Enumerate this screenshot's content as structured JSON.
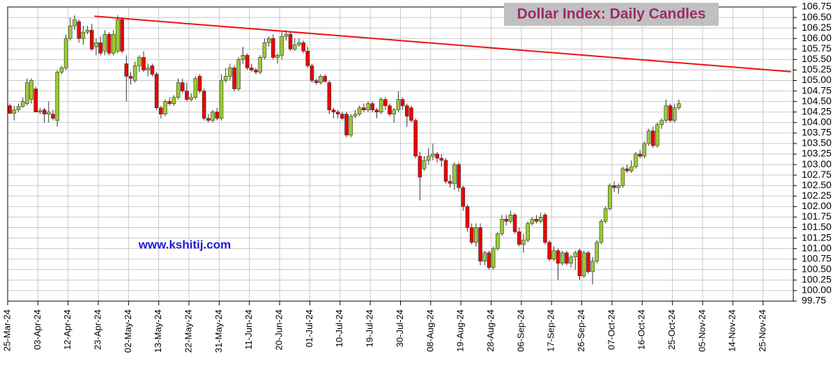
{
  "chart_data": {
    "type": "candlestick",
    "title": "Dollar Index:  Daily Candles",
    "watermark": "www.kshitij.com",
    "categories": [
      "25-Mar-24",
      null,
      null,
      null,
      null,
      null,
      null,
      "03-Apr-24",
      null,
      null,
      null,
      null,
      null,
      null,
      "12-Apr-24",
      null,
      null,
      null,
      null,
      null,
      null,
      "23-Apr-24",
      null,
      null,
      null,
      null,
      null,
      null,
      "02-May-24",
      null,
      null,
      null,
      null,
      null,
      null,
      "13-May-24",
      null,
      null,
      null,
      null,
      null,
      null,
      "22-May-24",
      null,
      null,
      null,
      null,
      null,
      null,
      "31-May-24",
      null,
      null,
      null,
      null,
      null,
      null,
      "11-Jun-24",
      null,
      null,
      null,
      null,
      null,
      null,
      "20-Jun-24",
      null,
      null,
      null,
      null,
      null,
      null,
      "01-Jul-24",
      null,
      null,
      null,
      null,
      null,
      null,
      "10-Jul-24",
      null,
      null,
      null,
      null,
      null,
      null,
      "19-Jul-24",
      null,
      null,
      null,
      null,
      null,
      null,
      "30-Jul-24",
      null,
      null,
      null,
      null,
      null,
      null,
      "08-Aug-24",
      null,
      null,
      null,
      null,
      null,
      null,
      "19-Aug-24",
      null,
      null,
      null,
      null,
      null,
      null,
      "28-Aug-24",
      null,
      null,
      null,
      null,
      null,
      null,
      "06-Sep-24",
      null,
      null,
      null,
      null,
      null,
      null,
      "17-Sep-24",
      null,
      null,
      null,
      null,
      null,
      null,
      "26-Sep-24",
      null,
      null,
      null,
      null,
      null,
      null,
      "07-Oct-24",
      null,
      null,
      null,
      null,
      null,
      null,
      "16-Oct-24",
      null,
      null,
      null,
      null,
      null,
      null,
      "25-Oct-24",
      null,
      null,
      null,
      null,
      null,
      null,
      "05-Nov-24",
      null,
      null,
      null,
      null,
      null,
      null,
      "14-Nov-24",
      null,
      null,
      null,
      null,
      null,
      null,
      "25-Nov-24",
      null,
      null,
      null,
      null,
      null,
      null
    ],
    "open": [
      104.4,
      104.22,
      104.3,
      104.38,
      104.45,
      104.55,
      104.8,
      104.25,
      104.3,
      104.2,
      104.2,
      104.05,
      105.2,
      105.3,
      106.0,
      106.3,
      106.4,
      106.0,
      106.15,
      106.2,
      105.8,
      105.9,
      105.7,
      106.1,
      105.65,
      105.7,
      106.45,
      105.4,
      105.1,
      105.0,
      105.35,
      105.55,
      105.25,
      105.35,
      105.15,
      104.35,
      104.2,
      104.5,
      104.45,
      104.6,
      104.95,
      104.75,
      104.55,
      104.6,
      105.1,
      104.75,
      104.1,
      104.05,
      104.25,
      104.1,
      105.0,
      105.1,
      105.3,
      104.8,
      105.5,
      105.6,
      105.3,
      105.25,
      105.2,
      105.55,
      105.9,
      106.0,
      105.55,
      105.6,
      106.05,
      106.1,
      105.75,
      105.85,
      105.9,
      105.7,
      105.35,
      105.0,
      104.95,
      105.1,
      104.95,
      104.3,
      104.25,
      104.2,
      104.2,
      103.7,
      104.15,
      104.2,
      104.35,
      104.3,
      104.45,
      104.3,
      104.25,
      104.55,
      104.4,
      104.2,
      104.3,
      104.55,
      104.4,
      104.35,
      104.05,
      103.2,
      102.9,
      103.1,
      103.2,
      103.25,
      103.15,
      103.1,
      102.6,
      102.55,
      103.0,
      102.45,
      102.0,
      101.5,
      101.15,
      101.5,
      100.7,
      100.9,
      100.55,
      101.0,
      101.35,
      101.7,
      101.65,
      101.8,
      101.4,
      101.1,
      101.2,
      101.6,
      101.7,
      101.65,
      101.8,
      101.15,
      100.75,
      100.95,
      100.65,
      100.9,
      100.65,
      100.8,
      100.95,
      100.35,
      100.9,
      100.45,
      100.7,
      101.15,
      101.65,
      101.95,
      102.5,
      102.45,
      102.5,
      102.9,
      102.85,
      102.95,
      103.25,
      103.2,
      103.5,
      103.8,
      103.45,
      103.95,
      104.05,
      104.4,
      104.05,
      104.35,
      null,
      null,
      null,
      null,
      null,
      null,
      null,
      null,
      null,
      null,
      null,
      null,
      null,
      null,
      null,
      null,
      null,
      null,
      null,
      null,
      null,
      null,
      null,
      null,
      null,
      null
    ],
    "high": [
      104.45,
      104.4,
      104.45,
      104.6,
      105.05,
      105.05,
      104.85,
      104.35,
      104.35,
      104.5,
      104.3,
      105.25,
      105.35,
      106.1,
      106.5,
      106.55,
      106.45,
      106.3,
      106.3,
      106.35,
      106.0,
      106.05,
      106.2,
      106.15,
      106.2,
      106.55,
      106.5,
      105.6,
      105.2,
      105.45,
      105.6,
      105.7,
      105.4,
      105.4,
      105.2,
      104.4,
      104.55,
      104.6,
      104.65,
      105.05,
      105.05,
      104.95,
      104.7,
      105.1,
      105.15,
      104.8,
      104.2,
      104.3,
      104.35,
      105.15,
      105.3,
      105.4,
      105.35,
      105.55,
      105.8,
      105.65,
      105.4,
      105.3,
      105.6,
      106.0,
      106.05,
      106.1,
      105.65,
      106.15,
      106.2,
      106.15,
      106.0,
      106.0,
      105.95,
      105.8,
      105.4,
      105.05,
      105.15,
      105.15,
      105.0,
      104.35,
      104.3,
      104.25,
      104.25,
      104.2,
      104.3,
      104.4,
      104.45,
      104.5,
      104.5,
      104.35,
      104.6,
      104.6,
      104.45,
      104.35,
      104.75,
      104.6,
      104.45,
      104.4,
      104.1,
      103.3,
      103.2,
      103.4,
      103.5,
      103.3,
      103.25,
      103.15,
      102.75,
      103.05,
      103.05,
      102.5,
      102.05,
      101.6,
      101.6,
      101.6,
      100.95,
      100.95,
      101.05,
      101.4,
      101.8,
      101.8,
      101.9,
      101.85,
      101.5,
      101.35,
      101.65,
      101.75,
      101.8,
      101.85,
      101.85,
      101.2,
      101.05,
      101.0,
      100.95,
      100.95,
      100.85,
      100.95,
      101.0,
      100.95,
      100.95,
      100.8,
      101.2,
      101.7,
      102.0,
      102.55,
      102.6,
      102.55,
      102.95,
      103.0,
      103.1,
      103.3,
      103.35,
      103.55,
      103.85,
      103.9,
      104.0,
      104.1,
      104.55,
      104.45,
      104.45,
      104.55,
      null,
      null,
      null,
      null,
      null,
      null,
      null,
      null,
      null,
      null,
      null,
      null,
      null,
      null,
      null,
      null,
      null,
      null,
      null,
      null,
      null,
      null,
      null,
      null,
      null,
      null
    ],
    "low": [
      104.2,
      104.05,
      104.25,
      104.35,
      104.4,
      104.45,
      104.25,
      104.2,
      104.0,
      104.0,
      104.05,
      103.9,
      105.15,
      105.25,
      105.95,
      106.2,
      105.9,
      105.85,
      106.1,
      105.7,
      105.6,
      105.6,
      105.6,
      105.6,
      105.6,
      105.65,
      105.65,
      104.5,
      104.9,
      104.95,
      105.2,
      105.2,
      105.1,
      105.1,
      104.3,
      104.1,
      104.15,
      104.4,
      104.4,
      104.55,
      104.7,
      104.5,
      104.5,
      104.55,
      104.7,
      104.05,
      104.0,
      104.0,
      104.05,
      104.05,
      104.95,
      105.0,
      104.75,
      104.75,
      105.4,
      105.25,
      105.2,
      105.15,
      105.15,
      105.5,
      105.8,
      105.5,
      105.4,
      105.5,
      105.95,
      105.7,
      105.7,
      105.8,
      105.65,
      105.3,
      104.95,
      104.9,
      104.9,
      104.95,
      104.2,
      104.1,
      104.1,
      104.05,
      103.65,
      103.65,
      104.1,
      104.15,
      104.25,
      104.25,
      104.25,
      104.1,
      104.2,
      104.3,
      104.15,
      104.0,
      104.25,
      104.3,
      103.9,
      104.0,
      103.15,
      102.15,
      102.85,
      103.0,
      103.1,
      103.05,
      102.95,
      102.55,
      102.45,
      102.4,
      102.35,
      101.9,
      101.4,
      101.1,
      101.05,
      100.6,
      100.6,
      100.5,
      100.5,
      100.95,
      101.3,
      101.55,
      101.6,
      101.35,
      101.05,
      100.9,
      101.15,
      101.55,
      101.6,
      101.6,
      101.1,
      100.7,
      100.7,
      100.25,
      100.6,
      100.6,
      100.55,
      100.5,
      100.25,
      100.3,
      100.4,
      100.15,
      100.65,
      101.1,
      101.6,
      101.9,
      102.35,
      102.3,
      102.45,
      102.8,
      102.8,
      102.9,
      103.15,
      103.15,
      103.45,
      103.4,
      103.4,
      103.85,
      104.0,
      104.0,
      104.0,
      104.3,
      null,
      null,
      null,
      null,
      null,
      null,
      null,
      null,
      null,
      null,
      null,
      null,
      null,
      null,
      null,
      null,
      null,
      null,
      null,
      null,
      null,
      null,
      null,
      null,
      null,
      null
    ],
    "close": [
      104.22,
      104.3,
      104.38,
      104.5,
      104.95,
      105.0,
      104.25,
      104.28,
      104.2,
      104.25,
      104.1,
      105.2,
      105.3,
      106.0,
      106.3,
      106.45,
      106.0,
      106.15,
      106.2,
      105.75,
      105.9,
      105.65,
      106.1,
      105.65,
      106.1,
      106.45,
      105.7,
      105.1,
      105.05,
      105.35,
      105.55,
      105.25,
      105.3,
      105.15,
      104.35,
      104.2,
      104.5,
      104.45,
      104.6,
      104.95,
      104.75,
      104.55,
      104.6,
      105.05,
      104.75,
      104.1,
      104.05,
      104.25,
      104.1,
      105.0,
      105.1,
      105.3,
      104.8,
      105.5,
      105.6,
      105.3,
      105.25,
      105.2,
      105.55,
      105.9,
      106.0,
      105.55,
      105.6,
      106.05,
      106.1,
      105.75,
      105.85,
      105.9,
      105.7,
      105.35,
      105.0,
      104.95,
      105.1,
      104.98,
      104.3,
      104.25,
      104.2,
      104.1,
      103.7,
      104.15,
      104.2,
      104.35,
      104.3,
      104.45,
      104.3,
      104.25,
      104.55,
      104.4,
      104.2,
      104.3,
      104.55,
      104.4,
      104.15,
      104.05,
      103.2,
      102.7,
      103.1,
      103.2,
      103.25,
      103.15,
      103.1,
      102.6,
      102.55,
      103.0,
      102.45,
      102.0,
      101.5,
      101.15,
      101.5,
      100.7,
      100.9,
      100.55,
      101.0,
      101.35,
      101.7,
      101.65,
      101.8,
      101.4,
      101.1,
      101.2,
      101.6,
      101.7,
      101.65,
      101.75,
      101.15,
      100.75,
      100.95,
      100.65,
      100.9,
      100.65,
      100.8,
      100.9,
      100.35,
      100.9,
      100.45,
      100.7,
      101.15,
      101.65,
      101.95,
      102.5,
      102.45,
      102.5,
      102.9,
      102.85,
      102.95,
      103.25,
      103.2,
      103.5,
      103.8,
      103.45,
      103.95,
      104.05,
      104.4,
      104.05,
      104.35,
      104.45,
      null,
      null,
      null,
      null,
      null,
      null,
      null,
      null,
      null,
      null,
      null,
      null,
      null,
      null,
      null,
      null,
      null,
      null,
      null,
      null,
      null,
      null,
      null,
      null,
      null,
      null
    ],
    "up_color": "#99cc33",
    "down_color": "#ee0000",
    "ylim": [
      99.75,
      106.75
    ],
    "yticks": [
      99.75,
      {
        "value": 100,
        "label": "100.00"
      },
      100.25,
      {
        "value": 100.5,
        "label": "100.50"
      },
      100.75,
      {
        "value": 101,
        "label": "101.00"
      },
      101.25,
      {
        "value": 101.5,
        "label": "101.50"
      },
      101.75,
      {
        "value": 102,
        "label": "102.00"
      },
      102.25,
      {
        "value": 102.5,
        "label": "102.50"
      },
      102.75,
      {
        "value": 103,
        "label": "103.00"
      },
      103.25,
      {
        "value": 103.5,
        "label": "103.50"
      },
      103.75,
      {
        "value": 104,
        "label": "104.00"
      },
      104.25,
      {
        "value": 104.5,
        "label": "104.50"
      },
      104.75,
      {
        "value": 105,
        "label": "105.00"
      },
      105.25,
      {
        "value": 105.5,
        "label": "105.50"
      },
      105.75,
      {
        "value": 106,
        "label": "106.00"
      },
      106.25,
      {
        "value": 106.5,
        "label": "106.50"
      },
      106.75
    ],
    "grid": true,
    "trendline": {
      "x": [
        19.6,
        181
      ],
      "y": [
        106.53,
        105.21
      ],
      "color": "#ee1111"
    }
  }
}
